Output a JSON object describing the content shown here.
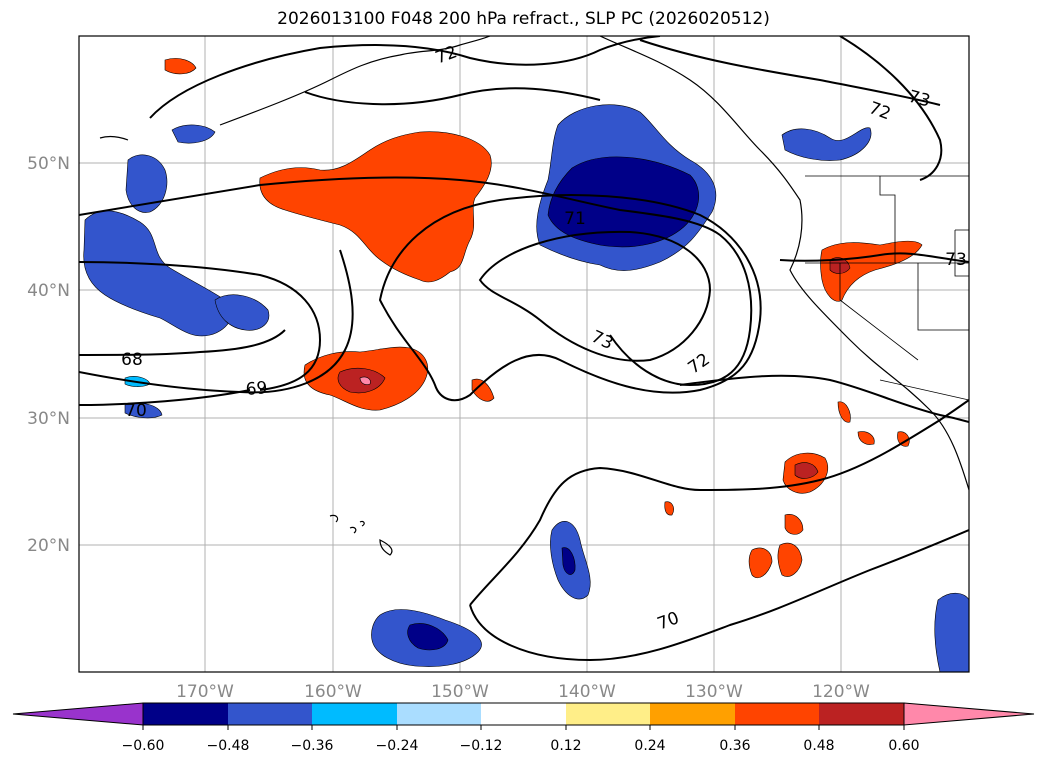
{
  "title": "2026013100 F048 200 hPa refract., SLP PC (2026020512)",
  "lat_labels": [
    "50°N",
    "40°N",
    "30°N",
    "20°N"
  ],
  "lon_labels": [
    "170°W",
    "160°W",
    "150°W",
    "140°W",
    "130°W",
    "120°W"
  ],
  "contour_labels": [
    "72",
    "72",
    "73",
    "71",
    "73",
    "73",
    "72",
    "68",
    "69",
    "70",
    "70"
  ],
  "colorbar": {
    "ticks": [
      "−0.60",
      "−0.48",
      "−0.36",
      "−0.24",
      "−0.12",
      "0.12",
      "0.24",
      "0.36",
      "0.48",
      "0.60"
    ],
    "colors": [
      "#9933cc",
      "#000088",
      "#3355cc",
      "#00bbff",
      "#aaddff",
      "#ffffff",
      "#ffee88",
      "#ffa000",
      "#ff4400",
      "#bb2222",
      "#ff88aa"
    ]
  },
  "palette": {
    "neg_strong": "#000088",
    "neg_mid": "#3355cc",
    "neg_light": "#00bbff",
    "neg_pale": "#aaddff",
    "pos_pale": "#ffee88",
    "pos_light": "#ffa000",
    "pos_mid": "#ff4400",
    "pos_strong": "#bb2222",
    "purple": "#9933cc",
    "pink": "#ff88aa"
  }
}
